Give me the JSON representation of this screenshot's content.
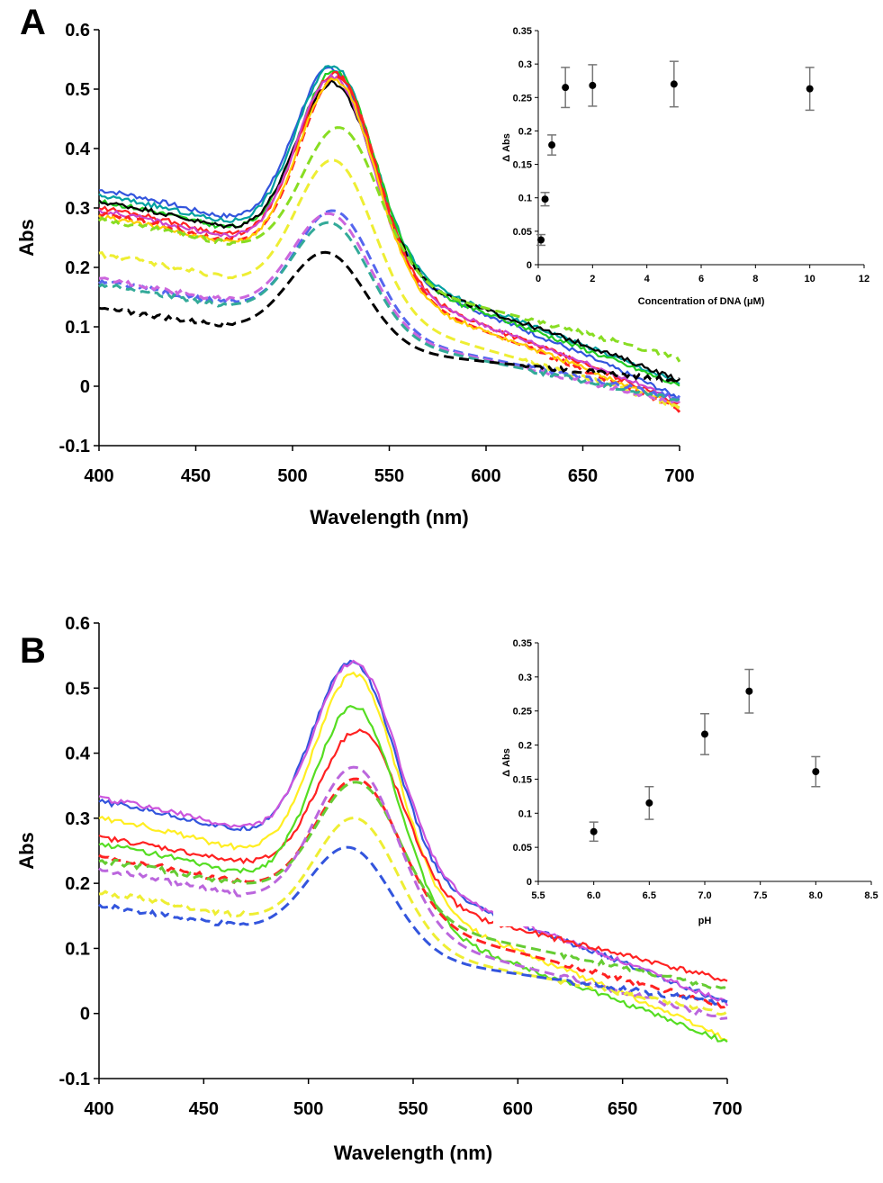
{
  "chart_data": [
    {
      "panel": "A",
      "type": "line",
      "xlabel": "Wavelength (nm)",
      "ylabel": "Abs",
      "xlim": [
        400,
        700
      ],
      "ylim": [
        -0.1,
        0.6
      ],
      "xticks": [
        400,
        450,
        500,
        550,
        600,
        650,
        700
      ],
      "yticks": [
        -0.1,
        0,
        0.1,
        0.2,
        0.3,
        0.4,
        0.5,
        0.6
      ],
      "series": [
        {
          "color": "#3355dd",
          "style": "solid",
          "base": 0.33,
          "peak": 0.535,
          "peak_x": 521,
          "end": -0.02
        },
        {
          "color": "#00a0a0",
          "style": "solid",
          "base": 0.32,
          "peak": 0.54,
          "peak_x": 522,
          "end": 0.005
        },
        {
          "color": "#22cc22",
          "style": "solid",
          "base": 0.31,
          "peak": 0.53,
          "peak_x": 523,
          "end": 0.0
        },
        {
          "color": "#000000",
          "style": "solid",
          "base": 0.31,
          "peak": 0.51,
          "peak_x": 522,
          "end": 0.01
        },
        {
          "color": "#ff2222",
          "style": "solid",
          "base": 0.3,
          "peak": 0.525,
          "peak_x": 523,
          "end": -0.03
        },
        {
          "color": "#cc44cc",
          "style": "solid",
          "base": 0.295,
          "peak": 0.52,
          "peak_x": 522,
          "end": -0.025
        },
        {
          "color": "#ff2222",
          "style": "dashed",
          "base": 0.29,
          "peak": 0.52,
          "peak_x": 524,
          "end": -0.04
        },
        {
          "color": "#ffcc00",
          "style": "solid",
          "base": 0.285,
          "peak": 0.515,
          "peak_x": 523,
          "end": -0.035
        },
        {
          "color": "#88dd22",
          "style": "dashed",
          "base": 0.28,
          "peak": 0.435,
          "peak_x": 525,
          "end": 0.045
        },
        {
          "color": "#eeee33",
          "style": "dashed",
          "base": 0.222,
          "peak": 0.38,
          "peak_x": 522,
          "end": -0.035
        },
        {
          "color": "#5566ee",
          "style": "dashed",
          "base": 0.175,
          "peak": 0.295,
          "peak_x": 522,
          "end": -0.02
        },
        {
          "color": "#cc66dd",
          "style": "dashed",
          "base": 0.18,
          "peak": 0.29,
          "peak_x": 520,
          "end": -0.03
        },
        {
          "color": "#33aa99",
          "style": "dashed",
          "base": 0.17,
          "peak": 0.275,
          "peak_x": 520,
          "end": -0.025
        },
        {
          "color": "#000000",
          "style": "dashed",
          "base": 0.13,
          "peak": 0.225,
          "peak_x": 518,
          "end": 0.01
        }
      ],
      "inset": {
        "type": "scatter",
        "xlabel": "Concentration of DNA (μM)",
        "ylabel": "Δ Abs",
        "xlim": [
          0,
          12
        ],
        "ylim": [
          0,
          0.35
        ],
        "xticks": [
          0,
          2,
          4,
          6,
          8,
          10,
          12
        ],
        "yticks": [
          0,
          0.05,
          0.1,
          0.15,
          0.2,
          0.25,
          0.3,
          0.35
        ],
        "x": [
          0.1,
          0.25,
          0.5,
          1,
          2,
          5,
          10
        ],
        "y": [
          0.037,
          0.098,
          0.179,
          0.265,
          0.268,
          0.27,
          0.263
        ],
        "err": [
          0.008,
          0.01,
          0.015,
          0.03,
          0.031,
          0.034,
          0.032
        ]
      }
    },
    {
      "panel": "B",
      "type": "line",
      "xlabel": "Wavelength (nm)",
      "ylabel": "Abs",
      "xlim": [
        400,
        700
      ],
      "ylim": [
        -0.1,
        0.6
      ],
      "xticks": [
        400,
        450,
        500,
        550,
        600,
        650,
        700
      ],
      "yticks": [
        -0.1,
        0,
        0.1,
        0.2,
        0.3,
        0.4,
        0.5,
        0.6
      ],
      "series": [
        {
          "color": "#3355dd",
          "style": "solid",
          "base": 0.325,
          "peak": 0.54,
          "peak_x": 522,
          "end": 0.015
        },
        {
          "color": "#cc55dd",
          "style": "solid",
          "base": 0.33,
          "peak": 0.54,
          "peak_x": 523,
          "end": 0.015
        },
        {
          "color": "#ffee22",
          "style": "solid",
          "base": 0.3,
          "peak": 0.52,
          "peak_x": 523,
          "end": -0.04
        },
        {
          "color": "#ff2222",
          "style": "solid",
          "base": 0.27,
          "peak": 0.435,
          "peak_x": 525,
          "end": 0.05
        },
        {
          "color": "#55dd22",
          "style": "solid",
          "base": 0.26,
          "peak": 0.472,
          "peak_x": 523,
          "end": -0.045
        },
        {
          "color": "#ff2222",
          "style": "dashed",
          "base": 0.24,
          "peak": 0.36,
          "peak_x": 524,
          "end": 0.01
        },
        {
          "color": "#66cc33",
          "style": "dashed",
          "base": 0.235,
          "peak": 0.355,
          "peak_x": 524,
          "end": 0.035
        },
        {
          "color": "#bb66dd",
          "style": "dashed",
          "base": 0.22,
          "peak": 0.378,
          "peak_x": 523,
          "end": -0.01
        },
        {
          "color": "#eeee33",
          "style": "dashed",
          "base": 0.185,
          "peak": 0.3,
          "peak_x": 523,
          "end": 0.0
        },
        {
          "color": "#3355dd",
          "style": "dashed",
          "base": 0.165,
          "peak": 0.255,
          "peak_x": 520,
          "end": 0.015
        }
      ],
      "inset": {
        "type": "scatter",
        "xlabel": "pH",
        "ylabel": "Δ Abs",
        "xlim": [
          5.5,
          8.5
        ],
        "ylim": [
          0,
          0.35
        ],
        "xticks": [
          "5.5",
          "6.0",
          "6.5",
          "7.0",
          "7.5",
          "8.0",
          "8.5"
        ],
        "yticks": [
          0,
          0.05,
          0.1,
          0.15,
          0.2,
          0.25,
          0.3,
          0.35
        ],
        "x": [
          6.0,
          6.5,
          7.0,
          7.4,
          8.0
        ],
        "y": [
          0.073,
          0.115,
          0.216,
          0.279,
          0.161
        ],
        "err": [
          0.014,
          0.024,
          0.03,
          0.032,
          0.022
        ]
      }
    }
  ]
}
